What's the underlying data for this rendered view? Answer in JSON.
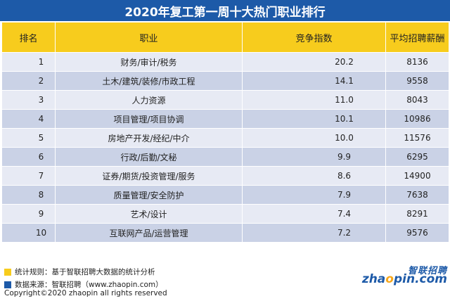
{
  "title": "2020年复工第一周十大热门职业排行",
  "table": {
    "headers": [
      "排名",
      "职业",
      "竞争指数",
      "平均招聘薪酬"
    ],
    "rows": [
      {
        "rank": "1",
        "job": "财务/审计/税务",
        "score": "20.2",
        "salary": "8136"
      },
      {
        "rank": "2",
        "job": "土木/建筑/装修/市政工程",
        "score": "14.1",
        "salary": "9558"
      },
      {
        "rank": "3",
        "job": "人力资源",
        "score": "11.0",
        "salary": "8043"
      },
      {
        "rank": "4",
        "job": "项目管理/项目协调",
        "score": "10.1",
        "salary": "10986"
      },
      {
        "rank": "5",
        "job": "房地产开发/经纪/中介",
        "score": "10.0",
        "salary": "11576"
      },
      {
        "rank": "6",
        "job": "行政/后勤/文秘",
        "score": "9.9",
        "salary": "6295"
      },
      {
        "rank": "7",
        "job": "证券/期货/投资管理/服务",
        "score": "8.6",
        "salary": "14900"
      },
      {
        "rank": "8",
        "job": "质量管理/安全防护",
        "score": "7.9",
        "salary": "7638"
      },
      {
        "rank": "9",
        "job": "艺术/设计",
        "score": "7.4",
        "salary": "8291"
      },
      {
        "rank": "10",
        "job": "互联网产品/运营管理",
        "score": "7.2",
        "salary": "9576"
      }
    ]
  },
  "notes": {
    "rule": "统计规则：基于智联招聘大数据的统计分析",
    "source": "数据来源：智联招聘（www.zhaopin.com）",
    "rule_color": "#f7cc1d",
    "source_color": "#1d5aa8"
  },
  "copyright": "Copyright©2020 zhaopin all rights reserved",
  "logo": {
    "cn": "智联招聘",
    "en_prefix": "zha",
    "en_o": "o",
    "en_suffix": "pin.com"
  },
  "colors": {
    "title_bg": "#1d5aa8",
    "header_bg": "#f7cc1d",
    "row_light": "#e7eaf4",
    "row_dark": "#cad2e6"
  }
}
